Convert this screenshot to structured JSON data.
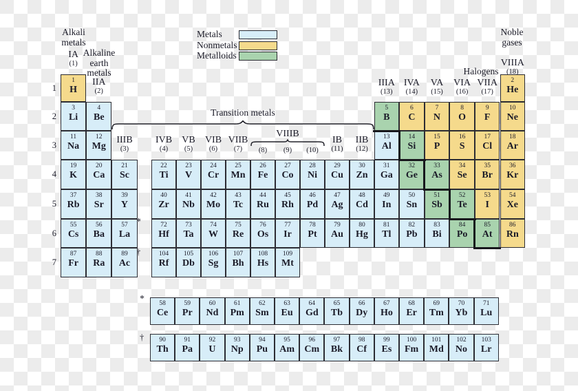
{
  "captions": {
    "alkali": [
      "Alkali",
      "metals"
    ],
    "alkaline": [
      "Alkaline",
      "earth",
      "metals"
    ],
    "transition": "Transition metals",
    "halogens": "Halogens",
    "noble": [
      "Noble",
      "gases"
    ]
  },
  "legend": [
    {
      "label": "Metals",
      "color": "#d7edf8",
      "key": "metal"
    },
    {
      "label": "Nonmetals",
      "color": "#f5da8c",
      "key": "nonmetal"
    },
    {
      "label": "Metalloids",
      "color": "#a9d3ae",
      "key": "metalloid"
    }
  ],
  "period_numbers": [
    "1",
    "2",
    "3",
    "4",
    "5",
    "6",
    "7"
  ],
  "footnote_markers": {
    "lanthanide": "*",
    "actinide": "†"
  },
  "group_headers": [
    {
      "label": "IA",
      "num": "(1)",
      "col": 1,
      "pos": "left-top"
    },
    {
      "label": "IIA",
      "num": "(2)",
      "col": 2,
      "pos": "left"
    },
    {
      "label": "IIIB",
      "num": "(3)",
      "col": 3,
      "pos": "b"
    },
    {
      "label": "IVB",
      "num": "(4)",
      "col": 4,
      "pos": "b"
    },
    {
      "label": "VB",
      "num": "(5)",
      "col": 5,
      "pos": "b"
    },
    {
      "label": "VIB",
      "num": "(6)",
      "col": 6,
      "pos": "b"
    },
    {
      "label": "VIIB",
      "num": "(7)",
      "col": 7,
      "pos": "b"
    },
    {
      "label": "VIIIB",
      "nums": [
        "(8)",
        "(9)",
        "(10)"
      ],
      "cols": [
        8,
        9,
        10
      ],
      "pos": "viiib"
    },
    {
      "label": "IB",
      "num": "(11)",
      "col": 11,
      "pos": "b"
    },
    {
      "label": "IIB",
      "num": "(12)",
      "col": 12,
      "pos": "b"
    },
    {
      "label": "IIIA",
      "num": "(13)",
      "col": 13,
      "pos": "a"
    },
    {
      "label": "IVA",
      "num": "(14)",
      "col": 14,
      "pos": "a"
    },
    {
      "label": "VA",
      "num": "(15)",
      "col": 15,
      "pos": "a"
    },
    {
      "label": "VIA",
      "num": "(16)",
      "col": 16,
      "pos": "a"
    },
    {
      "label": "VIIA",
      "num": "(17)",
      "col": 17,
      "pos": "a"
    },
    {
      "label": "VIIIA",
      "num": "(18)",
      "col": 18,
      "pos": "noble"
    }
  ],
  "elements": [
    {
      "z": 1,
      "s": "H",
      "p": 1,
      "g": 1,
      "c": "nonmetal"
    },
    {
      "z": 2,
      "s": "He",
      "p": 1,
      "g": 18,
      "c": "nonmetal"
    },
    {
      "z": 3,
      "s": "Li",
      "p": 2,
      "g": 1,
      "c": "metal"
    },
    {
      "z": 4,
      "s": "Be",
      "p": 2,
      "g": 2,
      "c": "metal"
    },
    {
      "z": 5,
      "s": "B",
      "p": 2,
      "g": 13,
      "c": "metalloid"
    },
    {
      "z": 6,
      "s": "C",
      "p": 2,
      "g": 14,
      "c": "nonmetal"
    },
    {
      "z": 7,
      "s": "N",
      "p": 2,
      "g": 15,
      "c": "nonmetal"
    },
    {
      "z": 8,
      "s": "O",
      "p": 2,
      "g": 16,
      "c": "nonmetal"
    },
    {
      "z": 9,
      "s": "F",
      "p": 2,
      "g": 17,
      "c": "nonmetal"
    },
    {
      "z": 10,
      "s": "Ne",
      "p": 2,
      "g": 18,
      "c": "nonmetal"
    },
    {
      "z": 11,
      "s": "Na",
      "p": 3,
      "g": 1,
      "c": "metal"
    },
    {
      "z": 12,
      "s": "Mg",
      "p": 3,
      "g": 2,
      "c": "metal"
    },
    {
      "z": 13,
      "s": "Al",
      "p": 3,
      "g": 13,
      "c": "metal"
    },
    {
      "z": 14,
      "s": "Si",
      "p": 3,
      "g": 14,
      "c": "metalloid"
    },
    {
      "z": 15,
      "s": "P",
      "p": 3,
      "g": 15,
      "c": "nonmetal"
    },
    {
      "z": 16,
      "s": "S",
      "p": 3,
      "g": 16,
      "c": "nonmetal"
    },
    {
      "z": 17,
      "s": "Cl",
      "p": 3,
      "g": 17,
      "c": "nonmetal"
    },
    {
      "z": 18,
      "s": "Ar",
      "p": 3,
      "g": 18,
      "c": "nonmetal"
    },
    {
      "z": 19,
      "s": "K",
      "p": 4,
      "g": 1,
      "c": "metal"
    },
    {
      "z": 20,
      "s": "Ca",
      "p": 4,
      "g": 2,
      "c": "metal"
    },
    {
      "z": 21,
      "s": "Sc",
      "p": 4,
      "g": 3,
      "c": "metal"
    },
    {
      "z": 22,
      "s": "Ti",
      "p": 4,
      "g": 4,
      "c": "metal"
    },
    {
      "z": 23,
      "s": "V",
      "p": 4,
      "g": 5,
      "c": "metal"
    },
    {
      "z": 24,
      "s": "Cr",
      "p": 4,
      "g": 6,
      "c": "metal"
    },
    {
      "z": 25,
      "s": "Mn",
      "p": 4,
      "g": 7,
      "c": "metal"
    },
    {
      "z": 26,
      "s": "Fe",
      "p": 4,
      "g": 8,
      "c": "metal"
    },
    {
      "z": 27,
      "s": "Co",
      "p": 4,
      "g": 9,
      "c": "metal"
    },
    {
      "z": 28,
      "s": "Ni",
      "p": 4,
      "g": 10,
      "c": "metal"
    },
    {
      "z": 29,
      "s": "Cu",
      "p": 4,
      "g": 11,
      "c": "metal"
    },
    {
      "z": 30,
      "s": "Zn",
      "p": 4,
      "g": 12,
      "c": "metal"
    },
    {
      "z": 31,
      "s": "Ga",
      "p": 4,
      "g": 13,
      "c": "metal"
    },
    {
      "z": 32,
      "s": "Ge",
      "p": 4,
      "g": 14,
      "c": "metalloid"
    },
    {
      "z": 33,
      "s": "As",
      "p": 4,
      "g": 15,
      "c": "metalloid"
    },
    {
      "z": 34,
      "s": "Se",
      "p": 4,
      "g": 16,
      "c": "nonmetal"
    },
    {
      "z": 35,
      "s": "Br",
      "p": 4,
      "g": 17,
      "c": "nonmetal"
    },
    {
      "z": 36,
      "s": "Kr",
      "p": 4,
      "g": 18,
      "c": "nonmetal"
    },
    {
      "z": 37,
      "s": "Rb",
      "p": 5,
      "g": 1,
      "c": "metal"
    },
    {
      "z": 38,
      "s": "Sr",
      "p": 5,
      "g": 2,
      "c": "metal"
    },
    {
      "z": 39,
      "s": "Y",
      "p": 5,
      "g": 3,
      "c": "metal"
    },
    {
      "z": 40,
      "s": "Zr",
      "p": 5,
      "g": 4,
      "c": "metal"
    },
    {
      "z": 41,
      "s": "Nb",
      "p": 5,
      "g": 5,
      "c": "metal"
    },
    {
      "z": 42,
      "s": "Mo",
      "p": 5,
      "g": 6,
      "c": "metal"
    },
    {
      "z": 43,
      "s": "Tc",
      "p": 5,
      "g": 7,
      "c": "metal"
    },
    {
      "z": 44,
      "s": "Ru",
      "p": 5,
      "g": 8,
      "c": "metal"
    },
    {
      "z": 45,
      "s": "Rh",
      "p": 5,
      "g": 9,
      "c": "metal"
    },
    {
      "z": 46,
      "s": "Pd",
      "p": 5,
      "g": 10,
      "c": "metal"
    },
    {
      "z": 47,
      "s": "Ag",
      "p": 5,
      "g": 11,
      "c": "metal"
    },
    {
      "z": 48,
      "s": "Cd",
      "p": 5,
      "g": 12,
      "c": "metal"
    },
    {
      "z": 49,
      "s": "In",
      "p": 5,
      "g": 13,
      "c": "metal"
    },
    {
      "z": 50,
      "s": "Sn",
      "p": 5,
      "g": 14,
      "c": "metal"
    },
    {
      "z": 51,
      "s": "Sb",
      "p": 5,
      "g": 15,
      "c": "metalloid"
    },
    {
      "z": 52,
      "s": "Te",
      "p": 5,
      "g": 16,
      "c": "metalloid"
    },
    {
      "z": 53,
      "s": "I",
      "p": 5,
      "g": 17,
      "c": "nonmetal"
    },
    {
      "z": 54,
      "s": "Xe",
      "p": 5,
      "g": 18,
      "c": "nonmetal"
    },
    {
      "z": 55,
      "s": "Cs",
      "p": 6,
      "g": 1,
      "c": "metal"
    },
    {
      "z": 56,
      "s": "Ba",
      "p": 6,
      "g": 2,
      "c": "metal"
    },
    {
      "z": 57,
      "s": "La",
      "p": 6,
      "g": 3,
      "c": "metal"
    },
    {
      "z": 72,
      "s": "Hf",
      "p": 6,
      "g": 4,
      "c": "metal"
    },
    {
      "z": 73,
      "s": "Ta",
      "p": 6,
      "g": 5,
      "c": "metal"
    },
    {
      "z": 74,
      "s": "W",
      "p": 6,
      "g": 6,
      "c": "metal"
    },
    {
      "z": 75,
      "s": "Re",
      "p": 6,
      "g": 7,
      "c": "metal"
    },
    {
      "z": 76,
      "s": "Os",
      "p": 6,
      "g": 8,
      "c": "metal"
    },
    {
      "z": 77,
      "s": "Ir",
      "p": 6,
      "g": 9,
      "c": "metal"
    },
    {
      "z": 78,
      "s": "Pt",
      "p": 6,
      "g": 10,
      "c": "metal"
    },
    {
      "z": 79,
      "s": "Au",
      "p": 6,
      "g": 11,
      "c": "metal"
    },
    {
      "z": 80,
      "s": "Hg",
      "p": 6,
      "g": 12,
      "c": "metal"
    },
    {
      "z": 81,
      "s": "Tl",
      "p": 6,
      "g": 13,
      "c": "metal"
    },
    {
      "z": 82,
      "s": "Pb",
      "p": 6,
      "g": 14,
      "c": "metal"
    },
    {
      "z": 83,
      "s": "Bi",
      "p": 6,
      "g": 15,
      "c": "metal"
    },
    {
      "z": 84,
      "s": "Po",
      "p": 6,
      "g": 16,
      "c": "metalloid"
    },
    {
      "z": 85,
      "s": "At",
      "p": 6,
      "g": 17,
      "c": "metalloid"
    },
    {
      "z": 86,
      "s": "Rn",
      "p": 6,
      "g": 18,
      "c": "nonmetal"
    },
    {
      "z": 87,
      "s": "Fr",
      "p": 7,
      "g": 1,
      "c": "metal"
    },
    {
      "z": 88,
      "s": "Ra",
      "p": 7,
      "g": 2,
      "c": "metal"
    },
    {
      "z": 89,
      "s": "Ac",
      "p": 7,
      "g": 3,
      "c": "metal"
    },
    {
      "z": 104,
      "s": "Rf",
      "p": 7,
      "g": 4,
      "c": "metal"
    },
    {
      "z": 105,
      "s": "Db",
      "p": 7,
      "g": 5,
      "c": "metal"
    },
    {
      "z": 106,
      "s": "Sg",
      "p": 7,
      "g": 6,
      "c": "metal"
    },
    {
      "z": 107,
      "s": "Bh",
      "p": 7,
      "g": 7,
      "c": "metal"
    },
    {
      "z": 108,
      "s": "Hs",
      "p": 7,
      "g": 8,
      "c": "metal"
    },
    {
      "z": 109,
      "s": "Mt",
      "p": 7,
      "g": 9,
      "c": "metal"
    }
  ],
  "lanthanides": [
    {
      "z": 58,
      "s": "Ce",
      "c": "metal"
    },
    {
      "z": 59,
      "s": "Pr",
      "c": "metal"
    },
    {
      "z": 60,
      "s": "Nd",
      "c": "metal"
    },
    {
      "z": 61,
      "s": "Pm",
      "c": "metal"
    },
    {
      "z": 62,
      "s": "Sm",
      "c": "metal"
    },
    {
      "z": 63,
      "s": "Eu",
      "c": "metal"
    },
    {
      "z": 64,
      "s": "Gd",
      "c": "metal"
    },
    {
      "z": 65,
      "s": "Tb",
      "c": "metal"
    },
    {
      "z": 66,
      "s": "Dy",
      "c": "metal"
    },
    {
      "z": 67,
      "s": "Ho",
      "c": "metal"
    },
    {
      "z": 68,
      "s": "Er",
      "c": "metal"
    },
    {
      "z": 69,
      "s": "Tm",
      "c": "metal"
    },
    {
      "z": 70,
      "s": "Yb",
      "c": "metal"
    },
    {
      "z": 71,
      "s": "Lu",
      "c": "metal"
    }
  ],
  "actinides": [
    {
      "z": 90,
      "s": "Th",
      "c": "metal"
    },
    {
      "z": 91,
      "s": "Pa",
      "c": "metal"
    },
    {
      "z": 92,
      "s": "U",
      "c": "metal"
    },
    {
      "z": 93,
      "s": "Np",
      "c": "metal"
    },
    {
      "z": 94,
      "s": "Pu",
      "c": "metal"
    },
    {
      "z": 95,
      "s": "Am",
      "c": "metal"
    },
    {
      "z": 96,
      "s": "Cm",
      "c": "metal"
    },
    {
      "z": 97,
      "s": "Bk",
      "c": "metal"
    },
    {
      "z": 98,
      "s": "Cf",
      "c": "metal"
    },
    {
      "z": 99,
      "s": "Es",
      "c": "metal"
    },
    {
      "z": 100,
      "s": "Fm",
      "c": "metal"
    },
    {
      "z": 101,
      "s": "Md",
      "c": "metal"
    },
    {
      "z": 102,
      "s": "No",
      "c": "metal"
    },
    {
      "z": 103,
      "s": "Lr",
      "c": "metal"
    }
  ]
}
